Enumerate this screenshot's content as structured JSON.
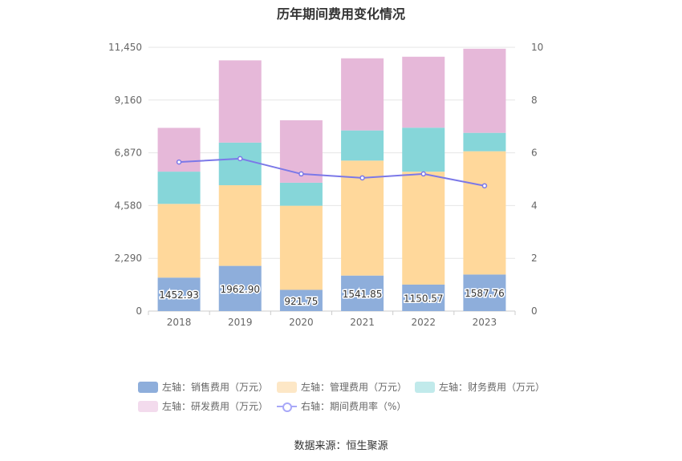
{
  "chart_data": {
    "type": "bar",
    "title": "历年期间费用变化情况",
    "categories": [
      "2018",
      "2019",
      "2020",
      "2021",
      "2022",
      "2023"
    ],
    "left_axis": {
      "ticks": [
        "0",
        "2,290",
        "4,580",
        "6,870",
        "9,160",
        "11,450"
      ],
      "range": [
        0,
        11450
      ]
    },
    "right_axis": {
      "ticks": [
        "0",
        "2",
        "4",
        "6",
        "8",
        "10"
      ],
      "range": [
        0,
        10
      ]
    },
    "series": [
      {
        "name": "左轴：销售费用（万元）",
        "type": "stacked-bar",
        "color": "#8eaedb",
        "values": [
          1452.93,
          1962.9,
          921.75,
          1541.85,
          1150.57,
          1587.76
        ],
        "labels": [
          "1452.93",
          "1962.90",
          "921.75",
          "1541.85",
          "1150.57",
          "1587.76"
        ]
      },
      {
        "name": "左轴：管理费用（万元）",
        "type": "stacked-bar",
        "color": "#ffd89b",
        "values": [
          3200,
          3500,
          3650,
          4990,
          4900,
          5350
        ]
      },
      {
        "name": "左轴：财务费用（万元）",
        "type": "stacked-bar",
        "color": "#86d6d9",
        "values": [
          1400,
          1850,
          1000,
          1310,
          1910,
          800
        ]
      },
      {
        "name": "左轴：研发费用（万元）",
        "type": "stacked-bar",
        "color": "#e6b8d9",
        "values": [
          1900,
          3570,
          2710,
          3130,
          3080,
          3650
        ]
      },
      {
        "name": "右轴：期间费用率（%）",
        "type": "line",
        "color": "#7b78e8",
        "values": [
          5.65,
          5.78,
          5.2,
          5.05,
          5.2,
          4.75
        ]
      }
    ],
    "legend_position": "bottom",
    "grid": true
  },
  "legend": [
    {
      "label": "左轴：销售费用（万元）",
      "color": "#8eaedb"
    },
    {
      "label": "左轴：管理费用（万元）",
      "color": "#fde7c6"
    },
    {
      "label": "左轴：财务费用（万元）",
      "color": "#c1eaeb"
    },
    {
      "label": "左轴：研发费用（万元）",
      "color": "#f3dbed"
    },
    {
      "label": "右轴：期间费用率（%）",
      "color": "#a8a8f8"
    }
  ],
  "source": "数据来源：恒生聚源"
}
